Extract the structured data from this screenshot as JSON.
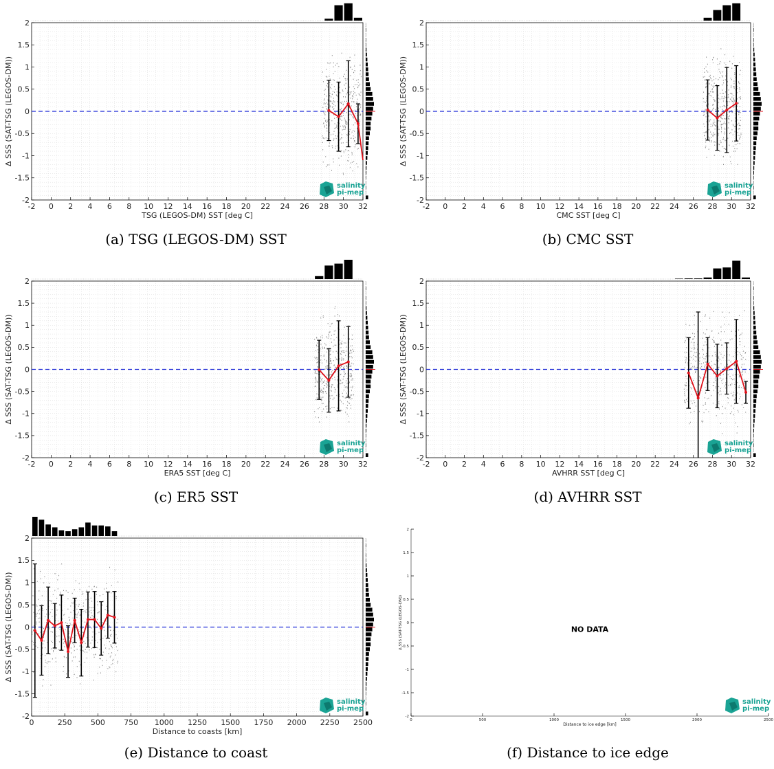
{
  "colors": {
    "zero_line": "#1f2bd6",
    "mean_line": "#e0121b",
    "bars": "#000000",
    "logo": "#1aa394",
    "logo_dark": "#0d7a6f",
    "grid": "#d9d9d9"
  },
  "logo": {
    "line1": "salinity",
    "line2": "pi-mep"
  },
  "panels": [
    {
      "caption": "(a) TSG (LEGOS-DM) SST",
      "xlabel": "TSG (LEGOS-DM) SST [deg C]",
      "ylabel": "Δ SSS (SAT-TSG (LEGOS-DM))",
      "xlim": [
        -2,
        32
      ],
      "ylim": [
        -2,
        2
      ],
      "xticks": [
        "-2",
        "0",
        "2",
        "4",
        "6",
        "8",
        "10",
        "12",
        "14",
        "16",
        "18",
        "20",
        "22",
        "24",
        "26",
        "28",
        "30",
        "32"
      ],
      "yticks": [
        "-2",
        "-1.5",
        "-1",
        "-0.5",
        "0",
        "0.5",
        "1",
        "1.5",
        "2"
      ],
      "chart_data": {
        "type": "scatter",
        "mean_x": [
          28.5,
          29.5,
          30.5,
          31.5,
          32.5
        ],
        "mean_y": [
          0.02,
          -0.12,
          0.17,
          -0.28,
          -1.1
        ],
        "std": [
          0.68,
          0.78,
          0.97,
          0.45,
          0.0
        ],
        "top_hist": {
          "x": [
            28,
            29,
            30,
            31
          ],
          "counts": [
            0.1,
            0.8,
            0.9,
            0.15
          ]
        },
        "side_hist": [
          0.02,
          0.05,
          0.02,
          0.05,
          0.05,
          0.1,
          0.15,
          0.2,
          0.25,
          0.3,
          0.35,
          0.4,
          0.5,
          0.6,
          0.8,
          0.9,
          1.0,
          0.9,
          0.8,
          0.7,
          0.6,
          0.6,
          0.5,
          0.4,
          0.35,
          0.3,
          0.25,
          0.2,
          0.15,
          0.1,
          0.08,
          0.05,
          0.03,
          0.05,
          0.02,
          0.3
        ],
        "scatter_x": [
          27.8,
          31.8
        ]
      }
    },
    {
      "caption": "(b) CMC SST",
      "xlabel": "CMC SST [deg C]",
      "ylabel": "Δ SSS (SAT-TSG (LEGOS-DM))",
      "xlim": [
        -2,
        32
      ],
      "ylim": [
        -2,
        2
      ],
      "xticks": [
        "-2",
        "0",
        "2",
        "4",
        "6",
        "8",
        "10",
        "12",
        "14",
        "16",
        "18",
        "20",
        "22",
        "24",
        "26",
        "28",
        "30",
        "32"
      ],
      "yticks": [
        "-2",
        "-1.5",
        "-1",
        "-0.5",
        "0",
        "0.5",
        "1",
        "1.5",
        "2"
      ],
      "chart_data": {
        "type": "scatter",
        "mean_x": [
          27.5,
          28.5,
          29.5,
          30.5
        ],
        "mean_y": [
          0.03,
          -0.15,
          0.03,
          0.18
        ],
        "std": [
          0.68,
          0.73,
          0.96,
          0.85
        ],
        "top_hist": {
          "x": [
            27,
            28,
            29,
            30
          ],
          "counts": [
            0.15,
            0.55,
            0.8,
            0.9
          ]
        },
        "side_hist": [
          0.02,
          0.05,
          0.02,
          0.05,
          0.05,
          0.1,
          0.15,
          0.2,
          0.25,
          0.3,
          0.35,
          0.4,
          0.5,
          0.6,
          0.8,
          0.9,
          1.0,
          0.9,
          0.8,
          0.7,
          0.6,
          0.6,
          0.5,
          0.4,
          0.35,
          0.3,
          0.25,
          0.2,
          0.15,
          0.1,
          0.08,
          0.05,
          0.03,
          0.05,
          0.02,
          0.3
        ],
        "scatter_x": [
          27.0,
          31.0
        ]
      }
    },
    {
      "caption": "(c) ER5 SST",
      "xlabel": "ERA5 SST [deg C]",
      "ylabel": "Δ SSS (SAT-TSG (LEGOS-DM))",
      "xlim": [
        -2,
        32
      ],
      "ylim": [
        -2,
        2
      ],
      "xticks": [
        "-2",
        "0",
        "2",
        "4",
        "6",
        "8",
        "10",
        "12",
        "14",
        "16",
        "18",
        "20",
        "22",
        "24",
        "26",
        "28",
        "30",
        "32"
      ],
      "yticks": [
        "-2",
        "-1.5",
        "-1",
        "-0.5",
        "0",
        "0.5",
        "1",
        "1.5",
        "2"
      ],
      "chart_data": {
        "type": "scatter",
        "mean_x": [
          27.5,
          28.5,
          29.5,
          30.5
        ],
        "mean_y": [
          -0.01,
          -0.25,
          0.08,
          0.17
        ],
        "std": [
          0.67,
          0.72,
          1.02,
          0.8
        ],
        "top_hist": {
          "x": [
            27,
            28,
            29,
            30
          ],
          "counts": [
            0.15,
            0.7,
            0.8,
            1.0
          ]
        },
        "side_hist": [
          0.02,
          0.05,
          0.02,
          0.05,
          0.05,
          0.1,
          0.15,
          0.2,
          0.25,
          0.3,
          0.35,
          0.4,
          0.5,
          0.6,
          0.8,
          0.9,
          1.0,
          0.9,
          0.8,
          0.7,
          0.6,
          0.6,
          0.5,
          0.4,
          0.35,
          0.3,
          0.25,
          0.2,
          0.15,
          0.1,
          0.08,
          0.05,
          0.03,
          0.05,
          0.02,
          0.3
        ],
        "scatter_x": [
          27.0,
          31.0
        ]
      }
    },
    {
      "caption": "(d) AVHRR SST",
      "xlabel": "AVHRR SST [deg C]",
      "ylabel": "Δ SSS (SAT-TSG (LEGOS-DM))",
      "xlim": [
        -2,
        32
      ],
      "ylim": [
        -2,
        2
      ],
      "xticks": [
        "-2",
        "0",
        "2",
        "4",
        "6",
        "8",
        "10",
        "12",
        "14",
        "16",
        "18",
        "20",
        "22",
        "24",
        "26",
        "28",
        "30",
        "32"
      ],
      "yticks": [
        "-2",
        "-1.5",
        "-1",
        "-0.5",
        "0",
        "0.5",
        "1",
        "1.5",
        "2"
      ],
      "chart_data": {
        "type": "scatter",
        "mean_x": [
          25.5,
          26.5,
          27.5,
          28.5,
          29.5,
          30.5,
          31.5
        ],
        "mean_y": [
          -0.08,
          -0.65,
          0.12,
          -0.15,
          0.02,
          0.18,
          -0.52
        ],
        "std": [
          0.8,
          1.95,
          0.6,
          0.72,
          0.58,
          0.95,
          0.25
        ],
        "top_hist": {
          "x": [
            24,
            25,
            26,
            27,
            28,
            29,
            30,
            31
          ],
          "counts": [
            0.02,
            0.03,
            0.03,
            0.08,
            0.55,
            0.6,
            0.95,
            0.08
          ]
        },
        "side_hist": [
          0.02,
          0.05,
          0.02,
          0.05,
          0.05,
          0.1,
          0.15,
          0.2,
          0.25,
          0.3,
          0.35,
          0.4,
          0.5,
          0.6,
          0.8,
          0.9,
          1.0,
          0.9,
          0.8,
          0.7,
          0.6,
          0.6,
          0.5,
          0.4,
          0.35,
          0.3,
          0.25,
          0.2,
          0.15,
          0.1,
          0.08,
          0.05,
          0.03,
          0.05,
          0.02,
          0.3
        ],
        "scatter_x": [
          25.0,
          31.5
        ]
      }
    },
    {
      "caption": "(e) Distance to coast",
      "xlabel": "Distance to coasts [km]",
      "ylabel": "Δ SSS (SAT-TSG (LEGOS-DM))",
      "xlim": [
        0,
        2500
      ],
      "ylim": [
        -2,
        2
      ],
      "xticks": [
        "0",
        "250",
        "500",
        "750",
        "1000",
        "1250",
        "1500",
        "1750",
        "2000",
        "2250",
        "2500"
      ],
      "yticks": [
        "-2",
        "-1.5",
        "-1",
        "-0.5",
        "0",
        "0.5",
        "1",
        "1.5",
        "2"
      ],
      "chart_data": {
        "type": "scatter",
        "mean_x": [
          25,
          75,
          125,
          175,
          225,
          275,
          325,
          375,
          425,
          475,
          525,
          575,
          625
        ],
        "mean_y": [
          -0.08,
          -0.3,
          0.15,
          0.03,
          0.1,
          -0.55,
          0.15,
          -0.35,
          0.17,
          0.17,
          -0.03,
          0.27,
          0.22
        ],
        "std": [
          1.5,
          0.78,
          0.75,
          0.5,
          0.62,
          0.58,
          0.5,
          0.75,
          0.62,
          0.63,
          0.6,
          0.52,
          0.58
        ],
        "top_hist": {
          "x": [
            0,
            50,
            100,
            150,
            200,
            250,
            300,
            350,
            400,
            450,
            500,
            550,
            600
          ],
          "counts": [
            1.0,
            0.85,
            0.6,
            0.45,
            0.3,
            0.25,
            0.35,
            0.45,
            0.7,
            0.55,
            0.55,
            0.5,
            0.25
          ]
        },
        "side_hist": [
          0.02,
          0.05,
          0.02,
          0.05,
          0.05,
          0.1,
          0.15,
          0.2,
          0.25,
          0.3,
          0.35,
          0.4,
          0.5,
          0.6,
          0.8,
          0.9,
          1.0,
          0.9,
          0.8,
          0.7,
          0.6,
          0.6,
          0.5,
          0.4,
          0.35,
          0.3,
          0.25,
          0.2,
          0.15,
          0.1,
          0.08,
          0.05,
          0.03,
          0.05,
          0.02,
          0.3
        ],
        "scatter_x": [
          0,
          650
        ]
      }
    },
    {
      "caption": "(f) Distance to ice edge",
      "xlabel": "Distance to ice edge [km]",
      "ylabel": "Δ SSS (SAT-TSG (LEGOS-DM))",
      "xlim": [
        0,
        2500
      ],
      "ylim": [
        -2,
        2
      ],
      "xticks": [
        "0",
        "500",
        "1000",
        "1500",
        "2000",
        "2500"
      ],
      "yticks": [
        "-2",
        "-1.5",
        "-1",
        "-0.5",
        "0",
        "0.5",
        "1",
        "1.5",
        "2"
      ],
      "nodata": "NO DATA",
      "chart_data": {
        "type": "scatter",
        "mean_x": [],
        "mean_y": [],
        "std": []
      }
    }
  ]
}
